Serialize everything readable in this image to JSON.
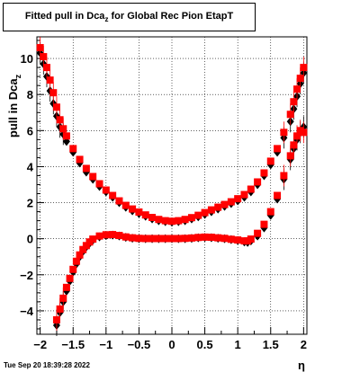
{
  "chart_data": {
    "type": "scatter",
    "title": "Fitted pull in Dca",
    "title_sub": "z",
    "title_rest": " for Global Rec Pion EtapT",
    "ylabel": "pull in Dca",
    "ylabel_sub": "z",
    "xlabel": "η",
    "xlim": [
      -2.05,
      2.05
    ],
    "ylim": [
      -5.3,
      11.2
    ],
    "xticks": [
      -2,
      -1.5,
      -1,
      -0.5,
      0,
      0.5,
      1,
      1.5,
      2
    ],
    "xtick_labels": [
      "−2",
      "−1.5",
      "−1",
      "−0.5",
      "0",
      "0.5",
      "1",
      "1.5",
      "2"
    ],
    "yticks": [
      -4,
      -2,
      0,
      2,
      4,
      6,
      8,
      10
    ],
    "ytick_labels": [
      "−4",
      "−2",
      "0",
      "2",
      "4",
      "6",
      "8",
      "10"
    ],
    "grid": true,
    "colors": {
      "series_black": "#000000",
      "series_red": "#ff0000"
    },
    "series": [
      {
        "marker": "diamond",
        "color": "#000000",
        "curve": "width",
        "points": [
          [
            -2.0,
            10.3
          ],
          [
            -1.95,
            9.7
          ],
          [
            -1.9,
            9.0
          ],
          [
            -1.85,
            8.2
          ],
          [
            -1.8,
            7.5
          ],
          [
            -1.75,
            6.8
          ],
          [
            -1.7,
            6.2
          ],
          [
            -1.65,
            5.8
          ],
          [
            -1.6,
            5.4
          ],
          [
            -1.5,
            4.8
          ],
          [
            -1.4,
            4.2
          ],
          [
            -1.3,
            3.7
          ],
          [
            -1.2,
            3.3
          ],
          [
            -1.1,
            2.9
          ],
          [
            -1.0,
            2.6
          ],
          [
            -0.9,
            2.3
          ],
          [
            -0.8,
            2.0
          ],
          [
            -0.7,
            1.75
          ],
          [
            -0.6,
            1.55
          ],
          [
            -0.5,
            1.4
          ],
          [
            -0.4,
            1.25
          ],
          [
            -0.3,
            1.1
          ],
          [
            -0.2,
            1.0
          ],
          [
            -0.1,
            0.95
          ],
          [
            0.0,
            0.92
          ],
          [
            0.1,
            0.95
          ],
          [
            0.2,
            1.0
          ],
          [
            0.3,
            1.1
          ],
          [
            0.4,
            1.22
          ],
          [
            0.5,
            1.35
          ],
          [
            0.6,
            1.5
          ],
          [
            0.7,
            1.65
          ],
          [
            0.8,
            1.8
          ],
          [
            0.9,
            1.95
          ],
          [
            1.0,
            2.1
          ],
          [
            1.1,
            2.3
          ],
          [
            1.2,
            2.6
          ],
          [
            1.3,
            3.0
          ],
          [
            1.4,
            3.5
          ],
          [
            1.5,
            4.1
          ],
          [
            1.6,
            4.8
          ],
          [
            1.7,
            5.6
          ],
          [
            1.8,
            6.5
          ],
          [
            1.85,
            7.2
          ],
          [
            1.9,
            7.9
          ],
          [
            1.95,
            8.6
          ],
          [
            2.0,
            9.2
          ]
        ]
      },
      {
        "marker": "square",
        "color": "#ff0000",
        "curve": "width",
        "points": [
          [
            -2.0,
            10.6
          ],
          [
            -1.95,
            10.1
          ],
          [
            -1.9,
            9.5
          ],
          [
            -1.85,
            8.8
          ],
          [
            -1.8,
            8.1
          ],
          [
            -1.75,
            7.3
          ],
          [
            -1.7,
            6.6
          ],
          [
            -1.65,
            6.1
          ],
          [
            -1.6,
            5.7
          ],
          [
            -1.5,
            5.0
          ],
          [
            -1.4,
            4.4
          ],
          [
            -1.3,
            3.9
          ],
          [
            -1.2,
            3.45
          ],
          [
            -1.1,
            3.05
          ],
          [
            -1.0,
            2.7
          ],
          [
            -0.9,
            2.4
          ],
          [
            -0.8,
            2.1
          ],
          [
            -0.7,
            1.85
          ],
          [
            -0.6,
            1.65
          ],
          [
            -0.5,
            1.48
          ],
          [
            -0.4,
            1.32
          ],
          [
            -0.3,
            1.18
          ],
          [
            -0.2,
            1.07
          ],
          [
            -0.1,
            1.0
          ],
          [
            0.0,
            0.97
          ],
          [
            0.1,
            1.0
          ],
          [
            0.2,
            1.07
          ],
          [
            0.3,
            1.17
          ],
          [
            0.4,
            1.3
          ],
          [
            0.5,
            1.45
          ],
          [
            0.6,
            1.6
          ],
          [
            0.7,
            1.75
          ],
          [
            0.8,
            1.9
          ],
          [
            0.9,
            2.05
          ],
          [
            1.0,
            2.22
          ],
          [
            1.1,
            2.45
          ],
          [
            1.2,
            2.75
          ],
          [
            1.3,
            3.15
          ],
          [
            1.4,
            3.65
          ],
          [
            1.5,
            4.3
          ],
          [
            1.6,
            5.0
          ],
          [
            1.7,
            5.9
          ],
          [
            1.8,
            6.9
          ],
          [
            1.85,
            7.6
          ],
          [
            1.9,
            8.3
          ],
          [
            1.95,
            8.9
          ],
          [
            2.0,
            9.5
          ]
        ]
      },
      {
        "marker": "diamond",
        "color": "#000000",
        "curve": "mean",
        "points": [
          [
            -1.75,
            -4.8
          ],
          [
            -1.7,
            -4.1
          ],
          [
            -1.65,
            -3.5
          ],
          [
            -1.6,
            -2.9
          ],
          [
            -1.55,
            -2.35
          ],
          [
            -1.5,
            -1.85
          ],
          [
            -1.45,
            -1.4
          ],
          [
            -1.4,
            -1.0
          ],
          [
            -1.35,
            -0.7
          ],
          [
            -1.3,
            -0.45
          ],
          [
            -1.25,
            -0.25
          ],
          [
            -1.2,
            -0.08
          ],
          [
            -1.1,
            0.1
          ],
          [
            -1.0,
            0.18
          ],
          [
            -0.9,
            0.2
          ],
          [
            -0.8,
            0.15
          ],
          [
            -0.7,
            0.08
          ],
          [
            -0.6,
            0.03
          ],
          [
            -0.5,
            0.0
          ],
          [
            -0.4,
            0.0
          ],
          [
            -0.3,
            0.0
          ],
          [
            -0.2,
            0.0
          ],
          [
            -0.1,
            0.0
          ],
          [
            0.0,
            0.0
          ],
          [
            0.1,
            0.0
          ],
          [
            0.2,
            0.0
          ],
          [
            0.3,
            0.02
          ],
          [
            0.4,
            0.05
          ],
          [
            0.5,
            0.07
          ],
          [
            0.6,
            0.06
          ],
          [
            0.7,
            0.03
          ],
          [
            0.8,
            0.0
          ],
          [
            0.9,
            -0.05
          ],
          [
            1.0,
            -0.1
          ],
          [
            1.1,
            -0.18
          ],
          [
            1.15,
            -0.2
          ],
          [
            1.2,
            -0.12
          ],
          [
            1.3,
            0.15
          ],
          [
            1.4,
            0.6
          ],
          [
            1.5,
            1.3
          ],
          [
            1.6,
            2.2
          ],
          [
            1.7,
            3.3
          ],
          [
            1.8,
            4.4
          ],
          [
            1.85,
            5.0
          ],
          [
            1.9,
            5.5
          ],
          [
            1.95,
            5.9
          ],
          [
            2.0,
            6.2
          ]
        ]
      },
      {
        "marker": "square",
        "color": "#ff0000",
        "curve": "mean",
        "points": [
          [
            -1.75,
            -4.5
          ],
          [
            -1.7,
            -3.9
          ],
          [
            -1.65,
            -3.3
          ],
          [
            -1.6,
            -2.7
          ],
          [
            -1.55,
            -2.2
          ],
          [
            -1.5,
            -1.7
          ],
          [
            -1.45,
            -1.25
          ],
          [
            -1.4,
            -0.9
          ],
          [
            -1.35,
            -0.6
          ],
          [
            -1.3,
            -0.38
          ],
          [
            -1.25,
            -0.18
          ],
          [
            -1.2,
            -0.02
          ],
          [
            -1.1,
            0.15
          ],
          [
            -1.0,
            0.22
          ],
          [
            -0.9,
            0.23
          ],
          [
            -0.8,
            0.18
          ],
          [
            -0.7,
            0.1
          ],
          [
            -0.6,
            0.05
          ],
          [
            -0.5,
            0.02
          ],
          [
            -0.4,
            0.01
          ],
          [
            -0.3,
            0.01
          ],
          [
            -0.2,
            0.01
          ],
          [
            -0.1,
            0.01
          ],
          [
            0.0,
            0.01
          ],
          [
            0.1,
            0.01
          ],
          [
            0.2,
            0.02
          ],
          [
            0.3,
            0.04
          ],
          [
            0.4,
            0.07
          ],
          [
            0.5,
            0.09
          ],
          [
            0.6,
            0.08
          ],
          [
            0.7,
            0.05
          ],
          [
            0.8,
            0.02
          ],
          [
            0.9,
            -0.03
          ],
          [
            1.0,
            -0.07
          ],
          [
            1.1,
            -0.12
          ],
          [
            1.15,
            -0.12
          ],
          [
            1.2,
            -0.02
          ],
          [
            1.3,
            0.3
          ],
          [
            1.4,
            0.8
          ],
          [
            1.5,
            1.5
          ],
          [
            1.6,
            2.4
          ],
          [
            1.7,
            3.5
          ],
          [
            1.8,
            4.6
          ],
          [
            1.85,
            5.2
          ],
          [
            1.9,
            5.7
          ],
          [
            1.95,
            6.0
          ],
          [
            2.0,
            5.9
          ]
        ]
      }
    ]
  },
  "footer": "Tue Sep 20 18:39:28 2022"
}
